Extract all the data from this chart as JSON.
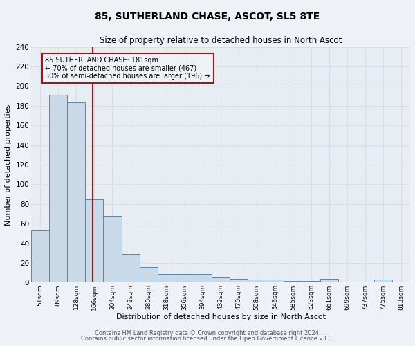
{
  "title": "85, SUTHERLAND CHASE, ASCOT, SL5 8TE",
  "subtitle": "Size of property relative to detached houses in North Ascot",
  "xlabel": "Distribution of detached houses by size in North Ascot",
  "ylabel": "Number of detached properties",
  "bin_labels": [
    "51sqm",
    "89sqm",
    "128sqm",
    "166sqm",
    "204sqm",
    "242sqm",
    "280sqm",
    "318sqm",
    "356sqm",
    "394sqm",
    "432sqm",
    "470sqm",
    "508sqm",
    "546sqm",
    "585sqm",
    "623sqm",
    "661sqm",
    "699sqm",
    "737sqm",
    "775sqm",
    "813sqm"
  ],
  "bin_edges": [
    51,
    89,
    128,
    166,
    204,
    242,
    280,
    318,
    356,
    394,
    432,
    470,
    508,
    546,
    585,
    623,
    661,
    699,
    737,
    775,
    813,
    851
  ],
  "bar_values": [
    53,
    191,
    183,
    85,
    68,
    29,
    16,
    9,
    9,
    9,
    5,
    4,
    3,
    3,
    2,
    2,
    4,
    1,
    1,
    3,
    1
  ],
  "bar_color": "#c9d9e8",
  "bar_edgecolor": "#5588aa",
  "marker_value_sqm": 181,
  "marker_label": "85 SUTHERLAND CHASE: 181sqm",
  "annotation_line1": "← 70% of detached houses are smaller (467)",
  "annotation_line2": "30% of semi-detached houses are larger (196) →",
  "annotation_box_edgecolor": "#aa1111",
  "ylim": [
    0,
    240
  ],
  "yticks": [
    0,
    20,
    40,
    60,
    80,
    100,
    120,
    140,
    160,
    180,
    200,
    220,
    240
  ],
  "footer1": "Contains HM Land Registry data © Crown copyright and database right 2024.",
  "footer2": "Contains public sector information licensed under the Open Government Licence v3.0.",
  "background_color": "#eef2f7",
  "bar_area_color": "#e8edf4",
  "grid_color": "#d8dfe8",
  "figsize": [
    6.0,
    5.0
  ],
  "dpi": 100
}
